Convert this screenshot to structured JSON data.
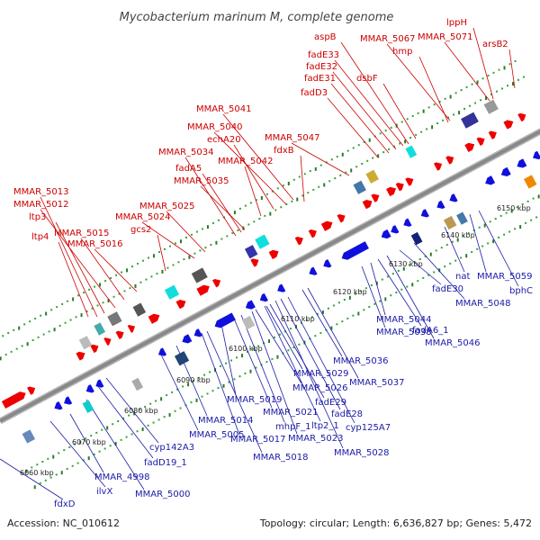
{
  "title": "Mycobacterium marinum M, complete genome",
  "footer": {
    "accession": "Accession: NC_010612",
    "summary": "Topology: circular; Length: 6,636,827 bp; Genes: 5,472"
  },
  "colors": {
    "backbone": "#888888",
    "forward_gene": "#ee0000",
    "reverse_gene": "#1010dd",
    "label_forward": "#cc0000",
    "label_reverse": "#1a1aa6",
    "tick": "#2a8a2a"
  },
  "scale_labels": [
    "6060 kbp",
    "6070 kbp",
    "6080 kbp",
    "6090 kbp",
    "6100 kbp",
    "6110 kbp",
    "6120 kbp",
    "6130 kbp",
    "6140 kbp",
    "6150 kbp"
  ],
  "forward_labels": [
    "MMAR_5013",
    "MMAR_5012",
    "ltp3",
    "ltp4",
    "MMAR_5015",
    "MMAR_5016",
    "gcs2",
    "MMAR_5024",
    "MMAR_5025",
    "MMAR_5035",
    "fadA5",
    "MMAR_5034",
    "echA20",
    "MMAR_5040",
    "MMAR_5041",
    "MMAR_5042",
    "fdxB",
    "MMAR_5047",
    "fadD3",
    "fadE31",
    "fadE32",
    "fadE33",
    "aspB",
    "dsbF",
    "hmp",
    "MMAR_5067",
    "MMAR_5071",
    "lppH",
    "arsB2"
  ],
  "reverse_labels": [
    "fdxD",
    "ilvX",
    "MMAR_4998",
    "MMAR_5000",
    "fadD19_1",
    "cyp142A3",
    "MMAR_5005",
    "MMAR_5014",
    "MMAR_5017",
    "MMAR_5018",
    "MMAR_5019",
    "mhpF_1",
    "MMAR_5021",
    "MMAR_5023",
    "ltp2_1",
    "MMAR_5026",
    "fadE29",
    "MMAR_5028",
    "MMAR_5029",
    "fadE28",
    "cyp125A7",
    "MMAR_5036",
    "MMAR_5037",
    "MMAR_5038",
    "MMAR_5044",
    "fadA6_1",
    "MMAR_5046",
    "fadE30",
    "MMAR_5048",
    "nat",
    "MMAR_5059",
    "bphC"
  ]
}
